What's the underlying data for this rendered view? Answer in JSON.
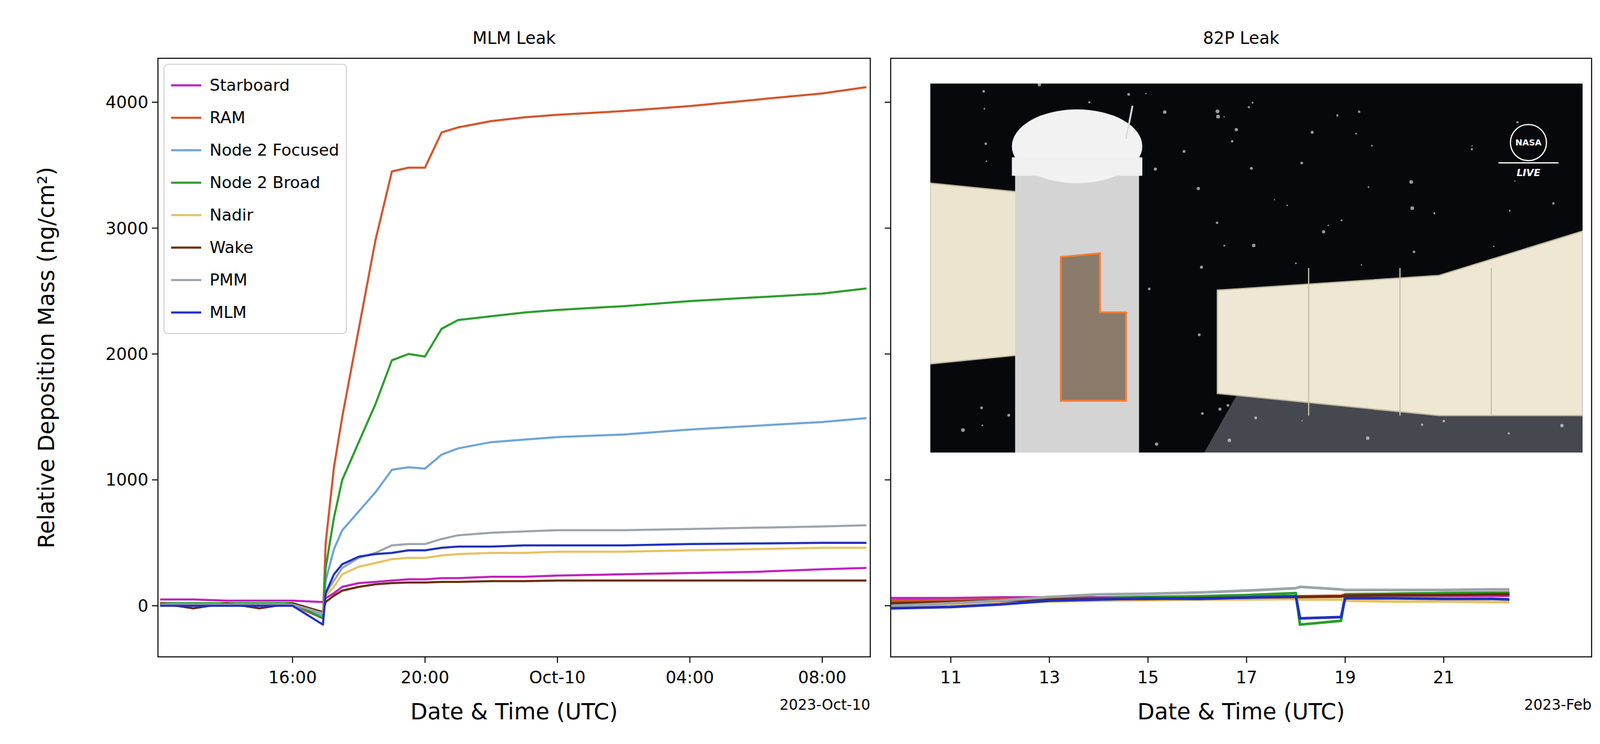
{
  "chart_data": [
    {
      "type": "line",
      "title": "MLM Leak",
      "xlabel": "Date & Time (UTC)",
      "ylabel": "Relative Deposition Mass (ng/cm²)",
      "date_label": "2023-Oct-10",
      "x": [
        "2023-10-09T12:00",
        "2023-10-09T13:00",
        "2023-10-09T14:00",
        "2023-10-09T15:00",
        "2023-10-09T16:00",
        "2023-10-09T16:55",
        "2023-10-09T17:00",
        "2023-10-09T17:15",
        "2023-10-09T17:30",
        "2023-10-09T18:00",
        "2023-10-09T18:30",
        "2023-10-09T19:00",
        "2023-10-09T19:30",
        "2023-10-09T20:00",
        "2023-10-09T20:30",
        "2023-10-09T21:00",
        "2023-10-09T22:00",
        "2023-10-09T23:00",
        "2023-10-10T00:00",
        "2023-10-10T02:00",
        "2023-10-10T04:00",
        "2023-10-10T06:00",
        "2023-10-10T08:00",
        "2023-10-10T09:20"
      ],
      "series": [
        {
          "name": "Starboard",
          "color": "#c020c0",
          "values": [
            50,
            50,
            40,
            40,
            40,
            30,
            60,
            100,
            150,
            180,
            190,
            200,
            210,
            210,
            220,
            220,
            230,
            230,
            240,
            250,
            260,
            270,
            290,
            300
          ]
        },
        {
          "name": "RAM",
          "color": "#d2552e",
          "values": [
            10,
            10,
            5,
            5,
            5,
            -100,
            500,
            1100,
            1500,
            2200,
            2900,
            3450,
            3480,
            3480,
            3760,
            3800,
            3850,
            3880,
            3900,
            3930,
            3970,
            4020,
            4070,
            4120
          ]
        },
        {
          "name": "Node 2 Focused",
          "color": "#6fa3d8",
          "values": [
            5,
            5,
            5,
            5,
            5,
            -80,
            200,
            450,
            600,
            750,
            900,
            1080,
            1100,
            1090,
            1200,
            1250,
            1300,
            1320,
            1340,
            1360,
            1400,
            1430,
            1460,
            1490
          ]
        },
        {
          "name": "Node 2 Broad",
          "color": "#2a9d2a",
          "values": [
            20,
            20,
            20,
            20,
            20,
            -100,
            300,
            700,
            1000,
            1300,
            1600,
            1950,
            2000,
            1980,
            2200,
            2270,
            2300,
            2330,
            2350,
            2380,
            2420,
            2450,
            2480,
            2520
          ]
        },
        {
          "name": "Nadir",
          "color": "#e8c060",
          "values": [
            10,
            10,
            10,
            10,
            10,
            -50,
            80,
            150,
            250,
            310,
            340,
            370,
            380,
            380,
            400,
            410,
            420,
            420,
            430,
            430,
            440,
            450,
            460,
            460
          ]
        },
        {
          "name": "Wake",
          "color": "#6b2a0a",
          "values": [
            20,
            -20,
            20,
            -20,
            20,
            -50,
            30,
            80,
            120,
            150,
            170,
            180,
            185,
            185,
            190,
            190,
            195,
            195,
            200,
            200,
            200,
            200,
            200,
            200
          ]
        },
        {
          "name": "PMM",
          "color": "#9aa4ab",
          "values": [
            10,
            10,
            10,
            10,
            10,
            -60,
            100,
            200,
            300,
            380,
            420,
            480,
            490,
            490,
            530,
            560,
            580,
            590,
            600,
            600,
            610,
            620,
            630,
            640
          ]
        },
        {
          "name": "MLM",
          "color": "#1f2fbf",
          "values": [
            0,
            0,
            0,
            0,
            0,
            -150,
            100,
            250,
            330,
            390,
            410,
            420,
            440,
            440,
            460,
            470,
            470,
            480,
            480,
            480,
            490,
            495,
            500,
            500
          ]
        }
      ],
      "xlim": [
        "2023-10-09T11:56",
        "2023-10-10T09:27"
      ],
      "xticks": [
        {
          "value": "2023-10-09T16:00",
          "label": "16:00"
        },
        {
          "value": "2023-10-09T20:00",
          "label": "20:00"
        },
        {
          "value": "2023-10-10T00:00",
          "label": "Oct-10"
        },
        {
          "value": "2023-10-10T04:00",
          "label": "04:00"
        },
        {
          "value": "2023-10-10T08:00",
          "label": "08:00"
        }
      ],
      "ylim": [
        -406,
        4349
      ],
      "yticks": [
        0,
        1000,
        2000,
        3000,
        4000
      ],
      "grid": false,
      "legend": "upper left"
    },
    {
      "type": "line",
      "title": "82P Leak",
      "xlabel": "Date & Time (UTC)",
      "date_label": "2023-Feb",
      "annotations": [
        "NASA",
        "LIVE"
      ],
      "x": [
        "2023-02-09T19:00",
        "2023-02-11T00:00",
        "2023-02-12T00:00",
        "2023-02-13T00:00",
        "2023-02-14T00:00",
        "2023-02-15T00:00",
        "2023-02-16T00:00",
        "2023-02-17T00:00",
        "2023-02-18T00:00",
        "2023-02-18T02:00",
        "2023-02-18T22:00",
        "2023-02-19T00:00",
        "2023-02-20T00:00",
        "2023-02-21T00:00",
        "2023-02-22T00:00",
        "2023-02-22T08:00"
      ],
      "series": [
        {
          "color": "#c020c0",
          "values": [
            60,
            60,
            65,
            65,
            65,
            70,
            70,
            70,
            75,
            75,
            75,
            75,
            80,
            80,
            80,
            80
          ]
        },
        {
          "color": "#d2552e",
          "values": [
            40,
            45,
            50,
            55,
            60,
            60,
            65,
            70,
            75,
            75,
            80,
            90,
            95,
            100,
            105,
            105
          ]
        },
        {
          "color": "#6fa3d8",
          "values": [
            20,
            30,
            40,
            50,
            55,
            60,
            65,
            70,
            75,
            70,
            75,
            80,
            85,
            85,
            90,
            90
          ]
        },
        {
          "color": "#2a9d2a",
          "values": [
            10,
            20,
            35,
            55,
            60,
            70,
            75,
            85,
            100,
            -150,
            -120,
            90,
            95,
            100,
            100,
            100
          ]
        },
        {
          "color": "#e8c060",
          "values": [
            0,
            10,
            20,
            35,
            40,
            45,
            50,
            50,
            55,
            50,
            50,
            40,
            35,
            35,
            30,
            30
          ]
        },
        {
          "color": "#6b2a0a",
          "values": [
            20,
            30,
            40,
            50,
            55,
            55,
            60,
            65,
            70,
            70,
            75,
            80,
            85,
            85,
            90,
            90
          ]
        },
        {
          "color": "#9aa4ab",
          "values": [
            0,
            20,
            40,
            70,
            90,
            95,
            105,
            120,
            140,
            150,
            130,
            125,
            125,
            125,
            130,
            130
          ]
        },
        {
          "color": "#1f2fbf",
          "values": [
            -20,
            -10,
            10,
            40,
            50,
            60,
            55,
            65,
            75,
            -100,
            -90,
            60,
            60,
            55,
            55,
            50
          ]
        }
      ],
      "xlim": [
        "2023-02-09T18:43",
        "2023-02-24T00:00"
      ],
      "xticks": [
        {
          "value": "2023-02-11T00:00",
          "label": "11"
        },
        {
          "value": "2023-02-13T00:00",
          "label": "13"
        },
        {
          "value": "2023-02-15T00:00",
          "label": "15"
        },
        {
          "value": "2023-02-17T00:00",
          "label": "17"
        },
        {
          "value": "2023-02-19T00:00",
          "label": "19"
        },
        {
          "value": "2023-02-21T00:00",
          "label": "21"
        }
      ],
      "ylim": [
        -406,
        4349
      ],
      "yticks": [
        0,
        1000,
        2000,
        3000,
        4000
      ],
      "grid": false,
      "tick_labels": "x"
    }
  ]
}
